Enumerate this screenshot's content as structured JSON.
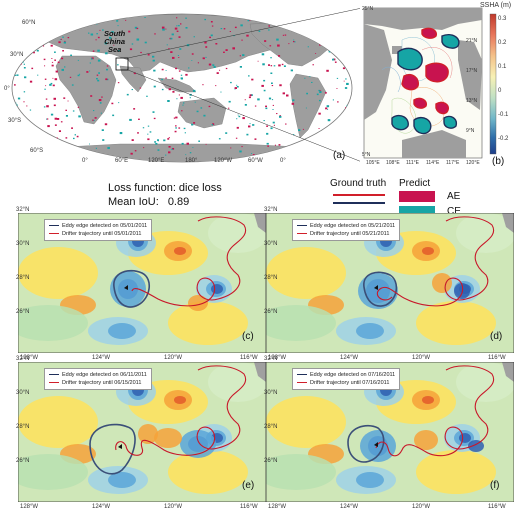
{
  "world_map": {
    "region_label_line1": "South",
    "region_label_line2": "China",
    "region_label_line3": "Sea",
    "lat_labels": [
      "60°N",
      "30°N",
      "0°",
      "30°S",
      "60°S"
    ],
    "lon_labels": [
      "0°",
      "60°E",
      "120°E",
      "180°",
      "120°W",
      "60°W",
      "0°"
    ],
    "panel_letter": "(a)"
  },
  "inset_map": {
    "title": "SSHA (m)",
    "lat_labels": [
      "25°N",
      "21°N",
      "17°N",
      "13°N",
      "9°N",
      "5°N"
    ],
    "lon_labels": [
      "105°E",
      "108°E",
      "111°E",
      "114°E",
      "117°E",
      "120°E"
    ],
    "colorbar_ticks": [
      "0.3",
      "0.2",
      "0.1",
      "0",
      "-0.1",
      "-0.2"
    ],
    "colorbar_colors": [
      "#c0392b",
      "#e8775c",
      "#f4c28a",
      "#f7f1b5",
      "#bfe0c4",
      "#6fb6c9",
      "#2f6faa",
      "#1f3f8a"
    ],
    "panel_letter": "(b)"
  },
  "loss_text": {
    "line1": "Loss function: dice loss",
    "line2_label": "Mean IoU:",
    "line2_value": "0.89"
  },
  "legend": {
    "ground_truth": "Ground truth",
    "predict": "Predict",
    "ae": "AE",
    "ce": "CE",
    "colors": {
      "gt_ae": "#d11f2a",
      "gt_ce": "#1f2f5a",
      "pred_ae": "#c8134f",
      "pred_ce": "#17a5a5"
    }
  },
  "panels": [
    {
      "letter": "(c)",
      "edge_text": "Eddy edge detected on 05/01/2011",
      "traj_text": "Drifter trajectory until 05/01/2011",
      "lat_labels": [
        "32°N",
        "30°N",
        "28°N",
        "26°N"
      ],
      "lon_labels": [
        "128°W",
        "124°W",
        "120°W",
        "116°W"
      ]
    },
    {
      "letter": "(d)",
      "edge_text": "Eddy edge detected on 05/21/2011",
      "traj_text": "Drifter trajectory until 05/21/2011",
      "lat_labels": [
        "32°N",
        "30°N",
        "28°N",
        "26°N"
      ],
      "lon_labels": [
        "128°W",
        "124°W",
        "120°W",
        "116°W"
      ]
    },
    {
      "letter": "(e)",
      "edge_text": "Eddy edge detected on 06/11/2011",
      "traj_text": "Drifter trajectory until 06/15/2011",
      "lat_labels": [
        "32°N",
        "30°N",
        "28°N",
        "26°N"
      ],
      "lon_labels": [
        "128°W",
        "124°W",
        "120°W",
        "116°W"
      ]
    },
    {
      "letter": "(f)",
      "edge_text": "Eddy edge detected on 07/16/2011",
      "traj_text": "Drifter trajectory until 07/16/2011",
      "lat_labels": [
        "32°N",
        "30°N",
        "28°N",
        "26°N"
      ],
      "lon_labels": [
        "128°W",
        "124°W",
        "120°W",
        "116°W"
      ]
    }
  ]
}
